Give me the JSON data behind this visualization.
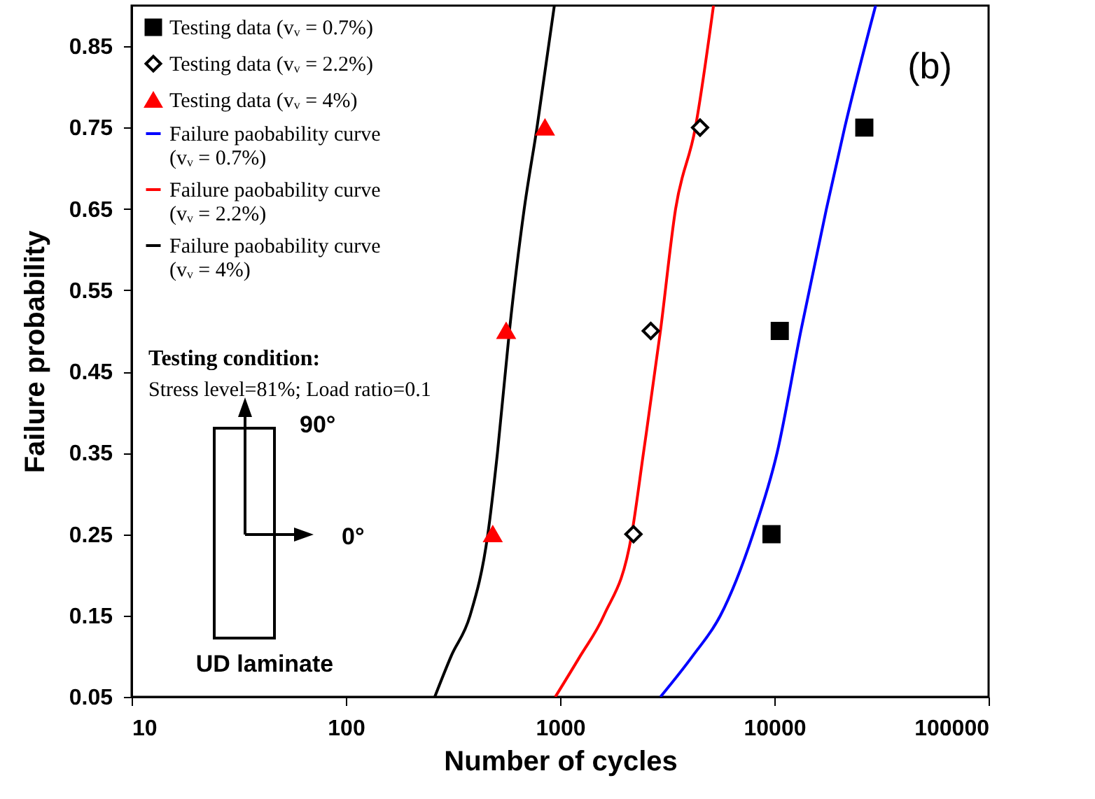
{
  "chart_data": {
    "type": "scatter",
    "xlabel": "Number of cycles",
    "ylabel": "Failure probability",
    "log": "x",
    "xlim": [
      10,
      100000
    ],
    "xticks": [
      10,
      100,
      1000,
      10000,
      100000
    ],
    "ylim": [
      0.05,
      0.9
    ],
    "yticks": [
      0.05,
      0.15,
      0.25,
      0.35,
      0.45,
      0.55,
      0.65,
      0.75,
      0.85
    ],
    "grid": false,
    "legend": "top left",
    "annotations": [
      "Testing condition:",
      "Stress level=81%; Load ratio=0.1",
      "90°",
      "0°",
      "UD laminate",
      "(b)"
    ],
    "series": [
      {
        "name": "Testing data (vᵥ = 0.7%)",
        "type": "scatter",
        "marker": "square",
        "color": "#000000",
        "x": [
          9700,
          10600,
          26300
        ],
        "values": [
          0.25,
          0.5,
          0.75
        ]
      },
      {
        "name": "Testing data (vᵥ = 2.2%)",
        "type": "scatter",
        "marker": "diamond",
        "color": "#000000",
        "x": [
          2200,
          2650,
          4500
        ],
        "values": [
          0.25,
          0.5,
          0.75
        ]
      },
      {
        "name": "Testing data (vᵥ = 4%)",
        "type": "scatter",
        "marker": "triangle",
        "color": "#ff0000",
        "x": [
          485,
          560,
          850
        ],
        "values": [
          0.25,
          0.5,
          0.75
        ]
      },
      {
        "name": "Failure paobability curve (vᵥ = 0.7%)",
        "type": "line",
        "marker": "none",
        "line_style": "solid",
        "color": "#0000ff",
        "x": [
          2940,
          4150,
          5600,
          7950,
          10300,
          13300,
          17500,
          21300,
          29700
        ],
        "values": [
          0.05,
          0.1,
          0.15,
          0.25,
          0.35,
          0.5,
          0.65,
          0.75,
          0.9
        ]
      },
      {
        "name": "Failure paobability curve (vᵥ = 2.2%)",
        "type": "line",
        "marker": "none",
        "line_style": "solid",
        "color": "#ff0000",
        "x": [
          950,
          1240,
          1600,
          2160,
          2450,
          2940,
          3460,
          4280,
          5200
        ],
        "values": [
          0.05,
          0.1,
          0.15,
          0.25,
          0.35,
          0.5,
          0.65,
          0.75,
          0.9
        ]
      },
      {
        "name": "Failure paobability curve (vᵥ = 4%)",
        "type": "line",
        "marker": "none",
        "line_style": "solid",
        "color": "#000000",
        "x": [
          260,
          310,
          380,
          460,
          510,
          580,
          680,
          780,
          940
        ],
        "values": [
          0.05,
          0.1,
          0.15,
          0.25,
          0.35,
          0.5,
          0.65,
          0.75,
          0.9
        ]
      }
    ]
  }
}
